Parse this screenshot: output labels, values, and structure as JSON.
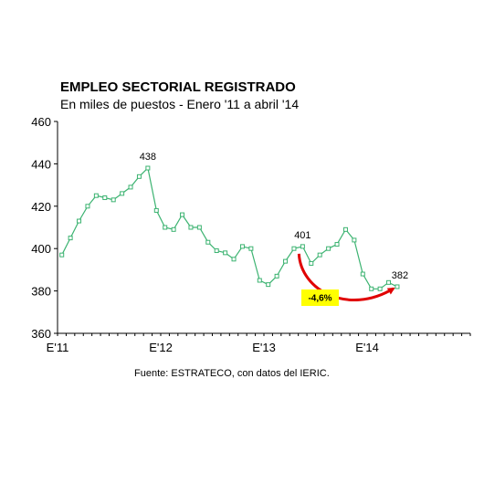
{
  "chart_data": {
    "type": "line",
    "title": "EMPLEO SECTORIAL REGISTRADO",
    "subtitle": "En miles de puestos - Enero '11 a abril '14",
    "ylim": [
      360,
      460
    ],
    "y_ticks": [
      "460",
      "440",
      "420",
      "400",
      "380",
      "360"
    ],
    "x_tick_labels": [
      {
        "label": "E'11",
        "index": 0
      },
      {
        "label": "E'12",
        "index": 12
      },
      {
        "label": "E'13",
        "index": 24
      },
      {
        "label": "E'14",
        "index": 36
      }
    ],
    "x_slots": 48,
    "grid": false,
    "series": [
      {
        "color": "#3cb371",
        "values": [
          397,
          405,
          413,
          420,
          425,
          424,
          423,
          426,
          429,
          434,
          438,
          418,
          410,
          409,
          416,
          410,
          410,
          403,
          399,
          398,
          395,
          401,
          400,
          385,
          383,
          387,
          394,
          400,
          401,
          393,
          397,
          400,
          402,
          409,
          404,
          388,
          381,
          381,
          384,
          382
        ]
      }
    ],
    "data_labels": [
      {
        "index": 10,
        "text": "438"
      },
      {
        "index": 28,
        "text": "401"
      },
      {
        "index": 39,
        "text": "382"
      }
    ],
    "annotation": {
      "text": "-4,6%",
      "from_index": 28,
      "to_index": 39,
      "arrow_color": "#e00000",
      "badge_color": "#ffff00"
    }
  },
  "source": "Fuente: ESTRATECO, con datos del IERIC."
}
